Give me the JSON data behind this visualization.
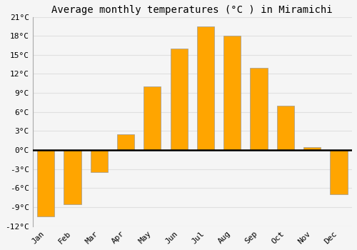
{
  "months": [
    "Jan",
    "Feb",
    "Mar",
    "Apr",
    "May",
    "Jun",
    "Jul",
    "Aug",
    "Sep",
    "Oct",
    "Nov",
    "Dec"
  ],
  "temperatures": [
    -10.5,
    -8.5,
    -3.5,
    2.5,
    10.0,
    16.0,
    19.5,
    18.0,
    13.0,
    7.0,
    0.5,
    -7.0
  ],
  "bar_color": "#FFA500",
  "bar_edge_color": "#999999",
  "title": "Average monthly temperatures (°C ) in Miramichi",
  "ylim": [
    -12,
    21
  ],
  "yticks": [
    -12,
    -9,
    -6,
    -3,
    0,
    3,
    6,
    9,
    12,
    15,
    18,
    21
  ],
  "background_color": "#f5f5f5",
  "grid_color": "#e0e0e0",
  "title_fontsize": 10,
  "tick_fontsize": 8,
  "font_family": "monospace"
}
